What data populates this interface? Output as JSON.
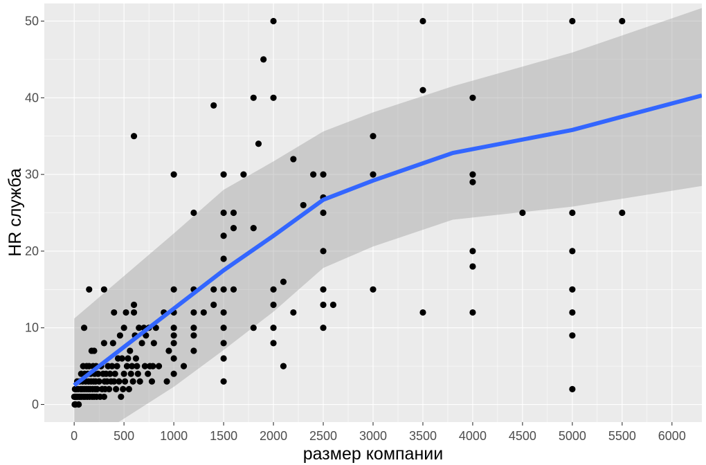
{
  "chart_data": {
    "type": "scatter",
    "xlabel": "размер компании",
    "ylabel": "HR служба",
    "xlim": [
      -300,
      6300
    ],
    "ylim": [
      -2.3,
      52.3
    ],
    "x_ticks": [
      0,
      500,
      1000,
      1500,
      2000,
      2500,
      3000,
      3500,
      4000,
      4500,
      5000,
      5500,
      6000
    ],
    "x_tick_labels": [
      "0",
      "500",
      "1000",
      "1500",
      "2000",
      "2500",
      "3000",
      "3500",
      "4000",
      "4500",
      "5000",
      "5500",
      "6000"
    ],
    "y_ticks": [
      0,
      10,
      20,
      30,
      40,
      50
    ],
    "y_tick_labels": [
      "0",
      "10",
      "20",
      "30",
      "40",
      "50"
    ],
    "grid": true,
    "legend": "none",
    "colors": {
      "panel": "#ebebeb",
      "grid": "#ffffff",
      "points": "#000000",
      "smooth_line": "#3366ff",
      "ribbon": "#999999"
    },
    "points": [
      [
        1,
        1
      ],
      [
        2,
        1
      ],
      [
        5,
        0
      ],
      [
        8,
        2
      ],
      [
        10,
        1
      ],
      [
        12,
        0
      ],
      [
        15,
        1
      ],
      [
        20,
        2
      ],
      [
        25,
        1
      ],
      [
        30,
        3
      ],
      [
        35,
        1
      ],
      [
        40,
        2
      ],
      [
        45,
        0
      ],
      [
        50,
        1
      ],
      [
        55,
        3
      ],
      [
        60,
        1
      ],
      [
        65,
        2
      ],
      [
        70,
        4
      ],
      [
        75,
        1
      ],
      [
        80,
        2
      ],
      [
        85,
        3
      ],
      [
        90,
        5
      ],
      [
        95,
        1
      ],
      [
        100,
        2
      ],
      [
        100,
        10
      ],
      [
        105,
        4
      ],
      [
        110,
        1
      ],
      [
        115,
        3
      ],
      [
        120,
        2
      ],
      [
        125,
        5
      ],
      [
        130,
        1
      ],
      [
        135,
        4
      ],
      [
        140,
        2
      ],
      [
        145,
        3
      ],
      [
        150,
        15
      ],
      [
        150,
        5
      ],
      [
        155,
        1
      ],
      [
        160,
        2
      ],
      [
        165,
        4
      ],
      [
        170,
        3
      ],
      [
        175,
        7
      ],
      [
        180,
        1
      ],
      [
        185,
        2
      ],
      [
        190,
        5
      ],
      [
        195,
        3
      ],
      [
        200,
        7
      ],
      [
        200,
        1
      ],
      [
        205,
        4
      ],
      [
        210,
        2
      ],
      [
        215,
        3
      ],
      [
        220,
        5
      ],
      [
        225,
        1
      ],
      [
        230,
        2
      ],
      [
        240,
        4
      ],
      [
        250,
        3
      ],
      [
        260,
        1
      ],
      [
        270,
        5
      ],
      [
        280,
        2
      ],
      [
        290,
        4
      ],
      [
        300,
        15
      ],
      [
        300,
        1
      ],
      [
        300,
        8
      ],
      [
        305,
        3
      ],
      [
        310,
        2
      ],
      [
        320,
        4
      ],
      [
        330,
        3
      ],
      [
        340,
        5
      ],
      [
        350,
        2
      ],
      [
        360,
        4
      ],
      [
        370,
        3
      ],
      [
        380,
        5
      ],
      [
        390,
        8
      ],
      [
        400,
        12
      ],
      [
        400,
        3
      ],
      [
        410,
        4
      ],
      [
        420,
        2
      ],
      [
        430,
        5
      ],
      [
        440,
        6
      ],
      [
        450,
        3
      ],
      [
        460,
        9
      ],
      [
        470,
        1
      ],
      [
        480,
        6
      ],
      [
        490,
        2
      ],
      [
        500,
        10
      ],
      [
        500,
        4
      ],
      [
        510,
        3
      ],
      [
        520,
        12
      ],
      [
        530,
        5
      ],
      [
        540,
        6
      ],
      [
        550,
        2
      ],
      [
        560,
        7
      ],
      [
        570,
        4
      ],
      [
        580,
        5
      ],
      [
        590,
        3
      ],
      [
        600,
        35
      ],
      [
        600,
        13
      ],
      [
        600,
        12
      ],
      [
        610,
        9
      ],
      [
        620,
        6
      ],
      [
        630,
        5
      ],
      [
        640,
        4
      ],
      [
        650,
        10
      ],
      [
        660,
        3
      ],
      [
        680,
        8
      ],
      [
        700,
        10
      ],
      [
        710,
        5
      ],
      [
        720,
        9
      ],
      [
        740,
        4
      ],
      [
        750,
        10
      ],
      [
        760,
        5
      ],
      [
        780,
        3
      ],
      [
        790,
        5
      ],
      [
        800,
        8
      ],
      [
        820,
        10
      ],
      [
        850,
        5
      ],
      [
        900,
        12
      ],
      [
        930,
        3
      ],
      [
        950,
        7
      ],
      [
        1000,
        30
      ],
      [
        1000,
        15
      ],
      [
        1000,
        12
      ],
      [
        1000,
        10
      ],
      [
        1000,
        9
      ],
      [
        1000,
        8
      ],
      [
        1000,
        6
      ],
      [
        1000,
        4
      ],
      [
        1100,
        5
      ],
      [
        1200,
        25
      ],
      [
        1200,
        15
      ],
      [
        1200,
        12
      ],
      [
        1200,
        10
      ],
      [
        1200,
        9
      ],
      [
        1200,
        7
      ],
      [
        1300,
        12
      ],
      [
        1400,
        39
      ],
      [
        1400,
        15
      ],
      [
        1400,
        13
      ],
      [
        1500,
        30
      ],
      [
        1500,
        25
      ],
      [
        1500,
        22
      ],
      [
        1500,
        19
      ],
      [
        1500,
        15
      ],
      [
        1500,
        12
      ],
      [
        1500,
        10
      ],
      [
        1500,
        8
      ],
      [
        1500,
        6
      ],
      [
        1500,
        3
      ],
      [
        1600,
        25
      ],
      [
        1600,
        23
      ],
      [
        1600,
        15
      ],
      [
        1700,
        30
      ],
      [
        1800,
        40
      ],
      [
        1800,
        23
      ],
      [
        1800,
        10
      ],
      [
        1850,
        34
      ],
      [
        1900,
        45
      ],
      [
        2000,
        50
      ],
      [
        2000,
        40
      ],
      [
        2000,
        15
      ],
      [
        2000,
        13
      ],
      [
        2000,
        10
      ],
      [
        2000,
        8
      ],
      [
        2100,
        16
      ],
      [
        2100,
        5
      ],
      [
        2200,
        32
      ],
      [
        2200,
        12
      ],
      [
        2300,
        26
      ],
      [
        2400,
        30
      ],
      [
        2500,
        30
      ],
      [
        2500,
        27
      ],
      [
        2500,
        25
      ],
      [
        2500,
        20
      ],
      [
        2500,
        15
      ],
      [
        2500,
        13
      ],
      [
        2500,
        10
      ],
      [
        2600,
        13
      ],
      [
        3000,
        35
      ],
      [
        3000,
        30
      ],
      [
        3000,
        15
      ],
      [
        3500,
        50
      ],
      [
        3500,
        41
      ],
      [
        3500,
        12
      ],
      [
        4000,
        40
      ],
      [
        4000,
        30
      ],
      [
        4000,
        29
      ],
      [
        4000,
        20
      ],
      [
        4000,
        18
      ],
      [
        4000,
        12
      ],
      [
        4500,
        25
      ],
      [
        5000,
        50
      ],
      [
        5000,
        25
      ],
      [
        5000,
        20
      ],
      [
        5000,
        15
      ],
      [
        5000,
        12
      ],
      [
        5000,
        9
      ],
      [
        5000,
        2
      ],
      [
        5500,
        50
      ],
      [
        5500,
        25
      ]
    ],
    "smooth": {
      "x": [
        0,
        1000,
        1500,
        2000,
        2500,
        3000,
        3800,
        5000,
        6300
      ],
      "y": [
        2.5,
        12.5,
        17.5,
        22,
        26.7,
        29.2,
        32.8,
        35.8,
        40.3
      ],
      "lower": [
        -6,
        2.3,
        7.1,
        12.1,
        17.8,
        20.6,
        24.1,
        25.8,
        28.5
      ],
      "upper": [
        11.2,
        22.3,
        28,
        31.7,
        35.6,
        38.1,
        41.5,
        45.9,
        51.7
      ]
    }
  }
}
